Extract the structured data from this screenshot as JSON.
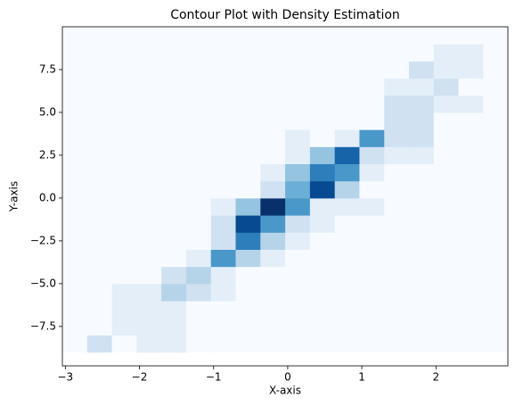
{
  "chart_data": {
    "type": "heatmap",
    "title": "Contour Plot with Density Estimation",
    "xlabel": "X-axis",
    "ylabel": "Y-axis",
    "xlim": [
      -3.04,
      2.97
    ],
    "ylim": [
      -9.8,
      10.0
    ],
    "xticks": [
      {
        "value": -3,
        "label": "−3"
      },
      {
        "value": -2,
        "label": "−2"
      },
      {
        "value": -1,
        "label": "−1"
      },
      0,
      1,
      2
    ],
    "yticks": [
      {
        "value": -7.5,
        "label": "−7.5"
      },
      {
        "value": -5,
        "label": "−5.0"
      },
      {
        "value": -2.5,
        "label": "−2.5"
      },
      {
        "value": 0,
        "label": "0.0"
      },
      {
        "value": 2.5,
        "label": "2.5"
      },
      {
        "value": 5,
        "label": "5.0"
      },
      7.5
    ],
    "colormap": [
      "#f7fbff",
      "#deebf7",
      "#c6dbef",
      "#9ecae1",
      "#6baed6",
      "#4292c6",
      "#2171b5",
      "#08519c",
      "#08306b"
    ],
    "x_edges": [
      -3.04,
      -2.706,
      -2.372,
      -2.038,
      -1.704,
      -1.37,
      -1.036,
      -0.702,
      -0.368,
      -0.034,
      0.3,
      0.634,
      0.968,
      1.302,
      1.636,
      1.97,
      2.304,
      2.638,
      2.972
    ],
    "y_edges": [
      -9,
      -8,
      -7,
      -6,
      -5,
      -4,
      -3,
      -2,
      -1,
      0,
      1,
      2,
      3,
      4,
      5,
      6,
      7,
      8,
      9,
      10
    ],
    "values": [
      [
        0,
        2,
        0,
        1,
        1,
        0,
        0,
        0,
        0,
        0,
        0,
        0,
        0,
        0,
        0,
        0,
        0,
        0
      ],
      [
        0,
        0,
        1,
        1,
        1,
        0,
        0,
        0,
        0,
        0,
        0,
        0,
        0,
        0,
        0,
        0,
        0,
        0
      ],
      [
        0,
        0,
        1,
        1,
        1,
        0,
        0,
        0,
        0,
        0,
        0,
        0,
        0,
        0,
        0,
        0,
        0,
        0
      ],
      [
        0,
        0,
        1,
        1,
        3,
        2,
        1,
        0,
        0,
        0,
        0,
        0,
        0,
        0,
        0,
        0,
        0,
        0
      ],
      [
        0,
        0,
        0,
        0,
        2,
        3,
        1,
        0,
        0,
        0,
        0,
        0,
        0,
        0,
        0,
        0,
        0,
        0
      ],
      [
        0,
        0,
        0,
        0,
        0,
        1,
        6,
        3,
        1,
        0,
        0,
        0,
        0,
        0,
        0,
        0,
        0,
        0
      ],
      [
        0,
        0,
        0,
        0,
        0,
        0,
        2,
        7,
        3,
        1,
        0,
        0,
        0,
        0,
        0,
        0,
        0,
        0
      ],
      [
        0,
        0,
        0,
        0,
        0,
        0,
        2,
        9,
        6,
        2,
        1,
        0,
        0,
        0,
        0,
        0,
        0,
        0
      ],
      [
        0,
        0,
        0,
        0,
        0,
        0,
        1,
        4,
        10,
        6,
        1,
        1,
        1,
        0,
        0,
        0,
        0,
        0
      ],
      [
        0,
        0,
        0,
        0,
        0,
        0,
        0,
        0,
        2,
        5,
        9,
        3,
        0,
        0,
        0,
        0,
        0,
        0
      ],
      [
        0,
        0,
        0,
        0,
        0,
        0,
        0,
        0,
        1,
        4,
        7,
        6,
        1,
        0,
        0,
        0,
        0,
        0
      ],
      [
        0,
        0,
        0,
        0,
        0,
        0,
        0,
        0,
        0,
        1,
        4,
        8,
        2,
        1,
        1,
        0,
        0,
        0
      ],
      [
        0,
        0,
        0,
        0,
        0,
        0,
        0,
        0,
        0,
        1,
        0,
        1,
        6,
        2,
        2,
        0,
        0,
        0
      ],
      [
        0,
        0,
        0,
        0,
        0,
        0,
        0,
        0,
        0,
        0,
        0,
        0,
        0,
        2,
        2,
        0,
        0,
        0
      ],
      [
        0,
        0,
        0,
        0,
        0,
        0,
        0,
        0,
        0,
        0,
        0,
        0,
        0,
        2,
        2,
        1,
        1,
        0
      ],
      [
        0,
        0,
        0,
        0,
        0,
        0,
        0,
        0,
        0,
        0,
        0,
        0,
        0,
        1,
        1,
        2,
        0,
        0
      ],
      [
        0,
        0,
        0,
        0,
        0,
        0,
        0,
        0,
        0,
        0,
        0,
        0,
        0,
        0,
        2,
        1,
        1,
        0
      ],
      [
        0,
        0,
        0,
        0,
        0,
        0,
        0,
        0,
        0,
        0,
        0,
        0,
        0,
        0,
        0,
        1,
        1,
        0
      ],
      [
        0,
        0,
        0,
        0,
        0,
        0,
        0,
        0,
        0,
        0,
        0,
        0,
        0,
        0,
        0,
        0,
        0,
        0
      ]
    ]
  }
}
